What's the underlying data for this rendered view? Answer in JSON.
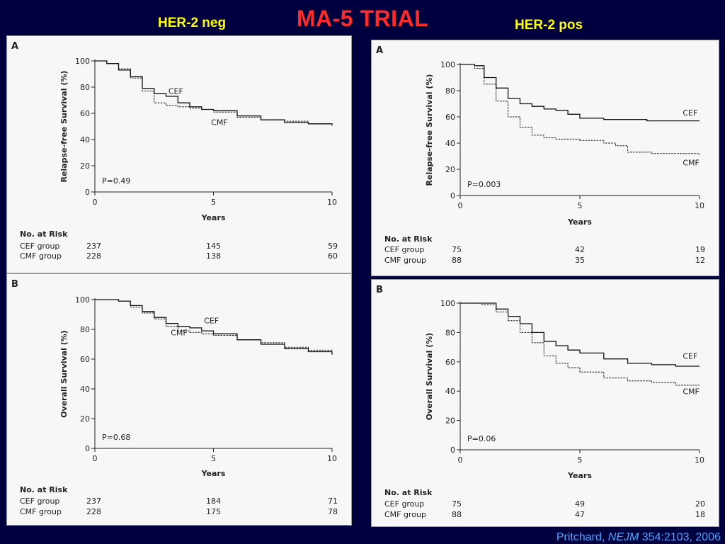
{
  "slide": {
    "title": "MA-5 TRIAL",
    "left_label": "HER-2 neg",
    "right_label": "HER-2 pos",
    "citation": {
      "authors": "Pritchard,",
      "journal": "NEJM",
      "ref": "354:2103, 2006"
    }
  },
  "colors": {
    "background": "#00003f",
    "title": "#ff2a2a",
    "labels": "#ffff00",
    "citation": "#4da6ff"
  },
  "chart_data": [
    {
      "id": "neg-relapse",
      "type": "line",
      "panel_letter": "A",
      "ylabel": "Relapse-free Survival (%)",
      "xlabel": "Years",
      "xlim": [
        0,
        10
      ],
      "ylim": [
        0,
        100
      ],
      "xticks": [
        0,
        5,
        10
      ],
      "yticks": [
        0,
        20,
        40,
        60,
        80,
        100
      ],
      "p_value": "P=0.49",
      "series": [
        {
          "name": "CEF",
          "style": "solid",
          "x": [
            0,
            0.5,
            1,
            1.5,
            2,
            2.5,
            3,
            3.5,
            4,
            4.5,
            5,
            6,
            7,
            8,
            9,
            10
          ],
          "y": [
            100,
            98,
            93,
            88,
            79,
            75,
            73,
            68,
            65,
            63,
            62,
            58,
            55,
            53,
            52,
            51
          ]
        },
        {
          "name": "CMF",
          "style": "dashed",
          "x": [
            0,
            0.5,
            1,
            1.5,
            2,
            2.5,
            3,
            3.5,
            4,
            4.5,
            5,
            6,
            7,
            8,
            9,
            10
          ],
          "y": [
            100,
            98,
            94,
            87,
            77,
            68,
            66,
            65,
            64,
            63,
            61,
            57,
            55,
            54,
            52,
            50
          ]
        }
      ],
      "curve_labels": [
        {
          "text": "CEF",
          "x": 3.1,
          "y": 75
        },
        {
          "text": "CMF",
          "x": 4.9,
          "y": 51
        }
      ],
      "risk_table": {
        "heading": "No. at Risk",
        "columns_x": [
          0,
          5,
          10
        ],
        "rows": [
          {
            "label": "CEF group",
            "values": [
              "237",
              "145",
              "59"
            ]
          },
          {
            "label": "CMF group",
            "values": [
              "228",
              "138",
              "60"
            ]
          }
        ]
      }
    },
    {
      "id": "neg-overall",
      "type": "line",
      "panel_letter": "B",
      "ylabel": "Overall Survival (%)",
      "xlabel": "Years",
      "xlim": [
        0,
        10
      ],
      "ylim": [
        0,
        100
      ],
      "xticks": [
        0,
        5,
        10
      ],
      "yticks": [
        0,
        20,
        40,
        60,
        80,
        100
      ],
      "p_value": "P=0.68",
      "series": [
        {
          "name": "CEF",
          "style": "solid",
          "x": [
            0,
            0.5,
            1,
            1.5,
            2,
            2.5,
            3,
            3.5,
            4,
            4.5,
            5,
            6,
            7,
            8,
            9,
            10
          ],
          "y": [
            100,
            100,
            99,
            96,
            92,
            88,
            84,
            82,
            81,
            79,
            77,
            73,
            70,
            67,
            65,
            63
          ]
        },
        {
          "name": "CMF",
          "style": "dashed",
          "x": [
            0,
            0.5,
            1,
            1.5,
            2,
            2.5,
            3,
            3.5,
            4,
            4.5,
            5,
            6,
            7,
            8,
            9,
            10
          ],
          "y": [
            100,
            100,
            99,
            95,
            91,
            87,
            82,
            79,
            78,
            77,
            76,
            73,
            71,
            68,
            66,
            65
          ]
        }
      ],
      "curve_labels": [
        {
          "text": "CEF",
          "x": 4.6,
          "y": 84
        },
        {
          "text": "CMF",
          "x": 3.2,
          "y": 76
        }
      ],
      "risk_table": {
        "heading": "No. at Risk",
        "columns_x": [
          0,
          5,
          10
        ],
        "rows": [
          {
            "label": "CEF group",
            "values": [
              "237",
              "184",
              "71"
            ]
          },
          {
            "label": "CMF group",
            "values": [
              "228",
              "175",
              "78"
            ]
          }
        ]
      }
    },
    {
      "id": "pos-relapse",
      "type": "line",
      "panel_letter": "A",
      "ylabel": "Relapse-free Survival (%)",
      "xlabel": "Years",
      "xlim": [
        0,
        10
      ],
      "ylim": [
        0,
        100
      ],
      "xticks": [
        0,
        5,
        10
      ],
      "yticks": [
        0,
        20,
        40,
        60,
        80,
        100
      ],
      "p_value": "P=0.003",
      "series": [
        {
          "name": "CEF",
          "style": "solid",
          "x": [
            0,
            0.6,
            1,
            1.5,
            2,
            2.5,
            3,
            3.5,
            4,
            4.5,
            5,
            6,
            7,
            7.8,
            8,
            9,
            10
          ],
          "y": [
            100,
            99,
            90,
            82,
            74,
            70,
            68,
            66,
            65,
            62,
            59,
            58,
            58,
            57,
            57,
            57,
            57
          ]
        },
        {
          "name": "CMF",
          "style": "dashed",
          "x": [
            0,
            0.6,
            1,
            1.5,
            2,
            2.5,
            3,
            3.5,
            4,
            5,
            6,
            6.5,
            7,
            8,
            9,
            10
          ],
          "y": [
            100,
            97,
            85,
            72,
            60,
            52,
            46,
            44,
            43,
            42,
            40,
            38,
            33,
            32,
            32,
            31
          ]
        }
      ],
      "curve_labels": [
        {
          "text": "CEF",
          "x": 9.3,
          "y": 61
        },
        {
          "text": "CMF",
          "x": 9.3,
          "y": 23
        }
      ],
      "risk_table": {
        "heading": "No. at Risk",
        "columns_x": [
          0,
          5,
          10
        ],
        "rows": [
          {
            "label": "CEF group",
            "values": [
              "75",
              "42",
              "19"
            ]
          },
          {
            "label": "CMF group",
            "values": [
              "88",
              "35",
              "12"
            ]
          }
        ]
      }
    },
    {
      "id": "pos-overall",
      "type": "line",
      "panel_letter": "B",
      "ylabel": "Overall Survival (%)",
      "xlabel": "Years",
      "xlim": [
        0,
        10
      ],
      "ylim": [
        0,
        100
      ],
      "xticks": [
        0,
        5,
        10
      ],
      "yticks": [
        0,
        20,
        40,
        60,
        80,
        100
      ],
      "p_value": "P=0.06",
      "series": [
        {
          "name": "CEF",
          "style": "solid",
          "x": [
            0,
            0.9,
            1.5,
            2,
            2.5,
            3,
            3.5,
            4,
            4.5,
            5,
            6,
            7,
            8,
            9,
            10
          ],
          "y": [
            100,
            100,
            96,
            91,
            86,
            80,
            74,
            71,
            68,
            66,
            62,
            59,
            58,
            57,
            57
          ]
        },
        {
          "name": "CMF",
          "style": "dashed",
          "x": [
            0,
            0.9,
            1.5,
            2,
            2.5,
            3,
            3.5,
            4,
            4.5,
            5,
            6,
            7,
            8,
            9,
            10
          ],
          "y": [
            100,
            99,
            94,
            88,
            80,
            73,
            64,
            59,
            56,
            53,
            49,
            47,
            46,
            44,
            44
          ]
        }
      ],
      "curve_labels": [
        {
          "text": "CEF",
          "x": 9.3,
          "y": 62
        },
        {
          "text": "CMF",
          "x": 9.3,
          "y": 38
        }
      ],
      "risk_table": {
        "heading": "No. at Risk",
        "columns_x": [
          0,
          5,
          10
        ],
        "rows": [
          {
            "label": "CEF group",
            "values": [
              "75",
              "49",
              "20"
            ]
          },
          {
            "label": "CMF group",
            "values": [
              "88",
              "47",
              "18"
            ]
          }
        ]
      }
    }
  ]
}
